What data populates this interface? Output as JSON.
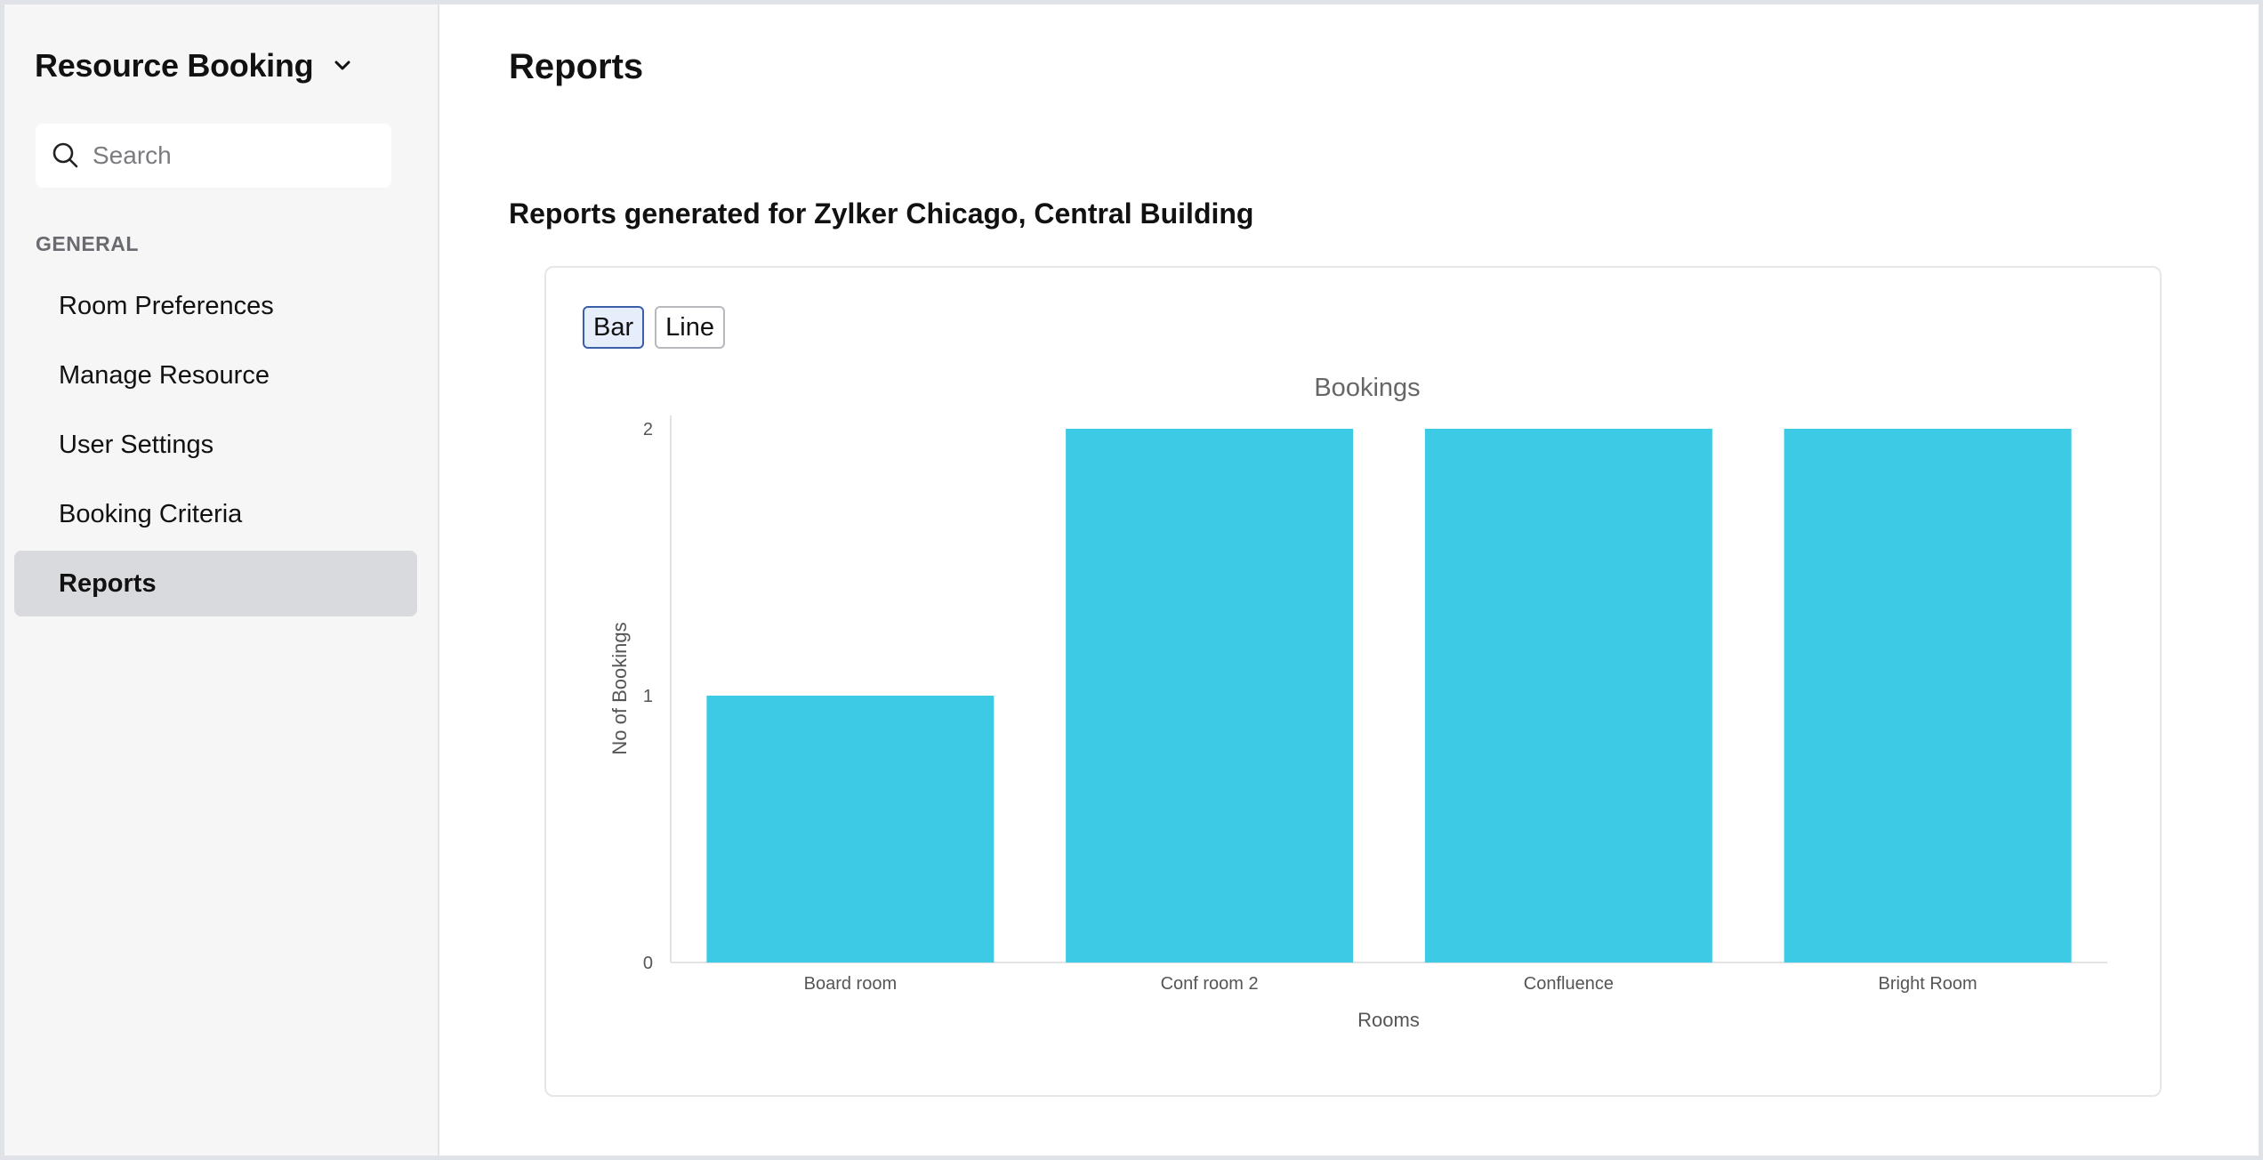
{
  "sidebar": {
    "app_title": "Resource Booking",
    "search_placeholder": "Search",
    "section_label": "GENERAL",
    "items": [
      {
        "label": "Room Preferences",
        "active": false
      },
      {
        "label": "Manage Resource",
        "active": false
      },
      {
        "label": "User Settings",
        "active": false
      },
      {
        "label": "Booking Criteria",
        "active": false
      },
      {
        "label": "Reports",
        "active": true
      }
    ]
  },
  "main": {
    "page_title": "Reports",
    "report_heading": "Reports generated for Zylker Chicago, Central Building",
    "toggle": {
      "bar_label": "Bar",
      "line_label": "Line",
      "selected": "Bar"
    }
  },
  "colors": {
    "bar": "#3ccae4",
    "axis_text": "#555555",
    "title_text": "#666666"
  },
  "chart_data": {
    "type": "bar",
    "title": "Bookings",
    "xlabel": "Rooms",
    "ylabel": "No of Bookings",
    "categories": [
      "Board room",
      "Conf room 2",
      "Confluence",
      "Bright Room"
    ],
    "values": [
      1,
      2,
      2,
      2
    ],
    "ylim": [
      0,
      2
    ],
    "yticks": [
      0,
      1,
      2
    ],
    "grid": false,
    "legend": "none"
  }
}
